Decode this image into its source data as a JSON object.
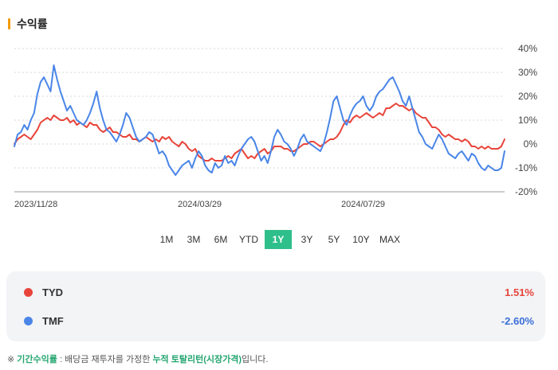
{
  "section": {
    "title": "수익률",
    "accent_color": "#f59a0c"
  },
  "chart_data": {
    "type": "line",
    "ylim": [
      -20,
      40
    ],
    "y_ticks": [
      40,
      30,
      20,
      10,
      0,
      -10,
      -20
    ],
    "y_tick_labels": [
      "40%",
      "30%",
      "20%",
      "10%",
      "0%",
      "-10%",
      "-20%"
    ],
    "x_tick_labels": [
      "2023/11/28",
      "2024/03/29",
      "2024/07/29"
    ],
    "grid": true,
    "series": [
      {
        "name": "TYD",
        "color": "#e8443a",
        "values": [
          0,
          2,
          3,
          4,
          3,
          2,
          4,
          6,
          9,
          10,
          11,
          10,
          12,
          11,
          10,
          10,
          11,
          9,
          10,
          8,
          9,
          8,
          7,
          9,
          8,
          8,
          6,
          5,
          6,
          7,
          5,
          5,
          4,
          3,
          3,
          4,
          2,
          2,
          1,
          2,
          3,
          2,
          1,
          2,
          1,
          3,
          2,
          3,
          1,
          0,
          -1,
          1,
          0,
          -2,
          -3,
          -2,
          -5,
          -6,
          -7,
          -7,
          -6,
          -7,
          -7,
          -7,
          -6,
          -5,
          -6,
          -4,
          -3,
          -2,
          -4,
          -6,
          -5,
          -6,
          -4,
          -3,
          -2,
          -4,
          -3,
          -1,
          -1,
          -1,
          -2,
          -2,
          -3,
          -3,
          -2,
          -1,
          0,
          0,
          1,
          1,
          0,
          -1,
          0,
          1,
          2,
          2,
          3,
          5,
          8,
          10,
          9,
          11,
          12,
          11,
          12,
          13,
          12,
          11,
          12,
          13,
          12,
          15,
          15,
          16,
          17,
          16,
          16,
          15,
          14,
          15,
          13,
          12,
          11,
          11,
          9,
          7,
          7,
          6,
          4,
          3,
          4,
          3,
          2,
          2,
          1,
          2,
          1,
          -1,
          -1,
          -2,
          -1,
          -2,
          -1,
          -2,
          -2,
          -2,
          -1,
          2
        ]
      },
      {
        "name": "TMF",
        "color": "#4a86e8",
        "values": [
          -1,
          4,
          5,
          8,
          6,
          10,
          13,
          21,
          26,
          28,
          25,
          22,
          33,
          27,
          22,
          18,
          14,
          16,
          13,
          10,
          9,
          8,
          10,
          13,
          17,
          22,
          15,
          10,
          6,
          5,
          3,
          1,
          4,
          8,
          13,
          11,
          7,
          3,
          1,
          2,
          3,
          5,
          4,
          0,
          -4,
          -3,
          -5,
          -9,
          -11,
          -13,
          -11,
          -9,
          -8,
          -7,
          -10,
          -6,
          -3,
          -5,
          -9,
          -11,
          -12,
          -8,
          -10,
          -9,
          -5,
          -8,
          -7,
          -9,
          -5,
          -2,
          0,
          2,
          3,
          1,
          -3,
          -7,
          -5,
          -8,
          -3,
          3,
          6,
          4,
          1,
          0,
          -2,
          -5,
          -2,
          2,
          4,
          1,
          0,
          -1,
          -2,
          -3,
          0,
          5,
          11,
          18,
          20,
          15,
          10,
          8,
          12,
          15,
          17,
          18,
          20,
          16,
          14,
          16,
          20,
          22,
          23,
          25,
          27,
          28,
          25,
          22,
          18,
          16,
          20,
          15,
          10,
          5,
          3,
          0,
          -1,
          -2,
          1,
          4,
          2,
          -1,
          -4,
          -5,
          -6,
          -4,
          -3,
          -5,
          -7,
          -4,
          -5,
          -8,
          -10,
          -11,
          -9,
          -10,
          -11,
          -11,
          -10,
          -3
        ]
      }
    ]
  },
  "periods": {
    "options": [
      "1M",
      "3M",
      "6M",
      "YTD",
      "1Y",
      "3Y",
      "5Y",
      "10Y",
      "MAX"
    ],
    "selected": "1Y",
    "active_color": "#2fbf8b"
  },
  "legend": [
    {
      "name": "TYD",
      "value": "1.51%",
      "dot_color": "#e8443a",
      "value_color": "#e8443a"
    },
    {
      "name": "TMF",
      "value": "-2.60%",
      "dot_color": "#4a86e8",
      "value_color": "#3a6fd8"
    }
  ],
  "footnote": {
    "prefix": "※ ",
    "term": "기간수익률",
    "middle": " : 배당금 재투자를 가정한 ",
    "emphasis": "누적 토탈리턴(시장가격)",
    "suffix": "입니다."
  }
}
